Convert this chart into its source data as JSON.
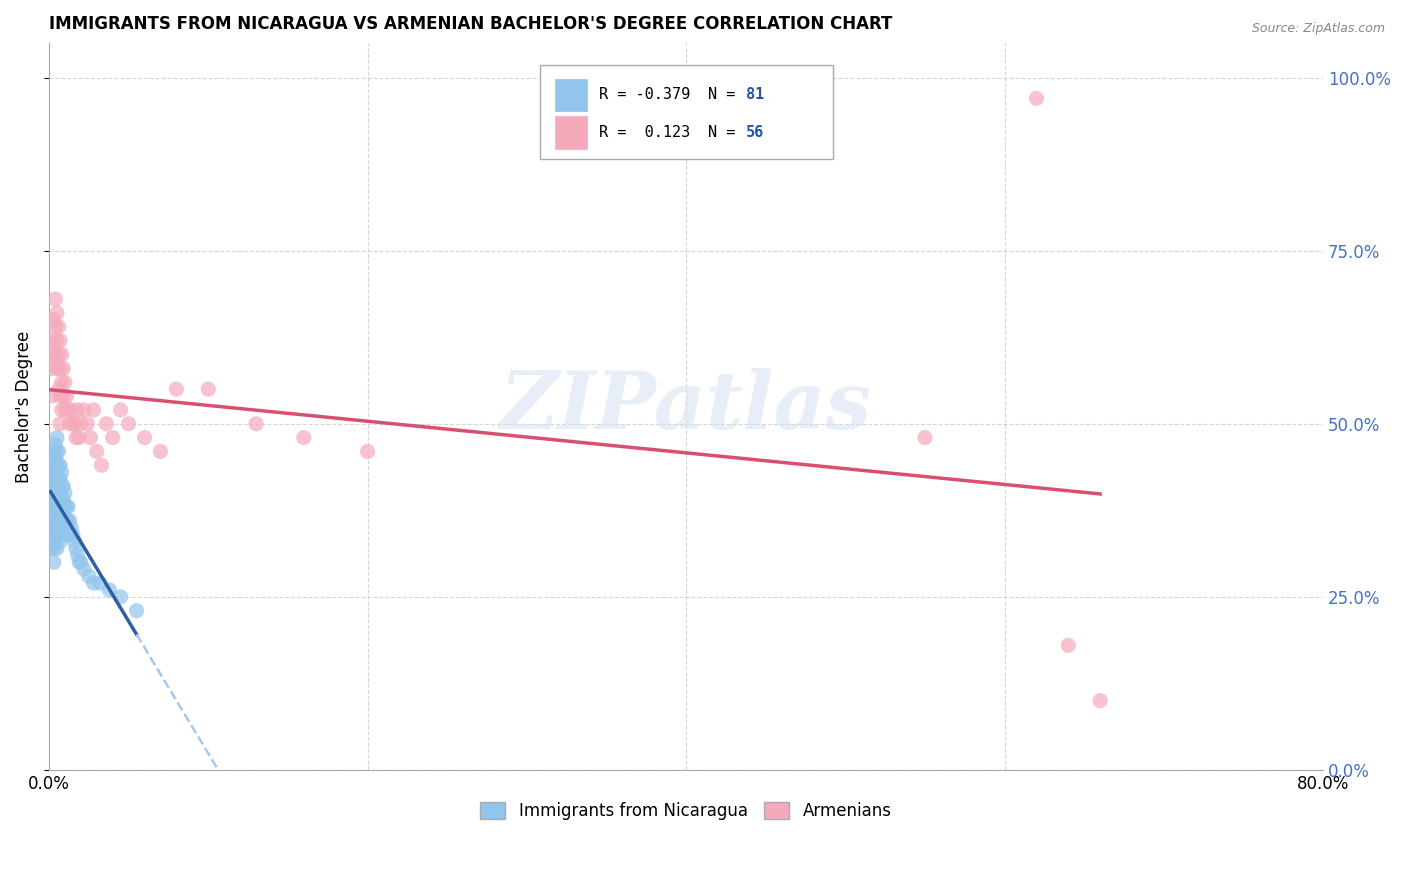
{
  "title": "IMMIGRANTS FROM NICARAGUA VS ARMENIAN BACHELOR'S DEGREE CORRELATION CHART",
  "source": "Source: ZipAtlas.com",
  "ylabel": "Bachelor's Degree",
  "legend_r_blue": "-0.379",
  "legend_n_blue": "81",
  "legend_r_pink": "0.123",
  "legend_n_pink": "56",
  "legend_label_blue": "Immigrants from Nicaragua",
  "legend_label_pink": "Armenians",
  "blue_color": "#92C5EC",
  "pink_color": "#F4AABB",
  "trendline_blue_color": "#2E5FA3",
  "trendline_pink_color": "#D94F70",
  "trendline_dashed_color": "#A8C8E8",
  "watermark": "ZIPatlas",
  "blue_x": [
    0.001,
    0.001,
    0.001,
    0.002,
    0.002,
    0.002,
    0.002,
    0.002,
    0.002,
    0.003,
    0.003,
    0.003,
    0.003,
    0.003,
    0.003,
    0.003,
    0.003,
    0.003,
    0.004,
    0.004,
    0.004,
    0.004,
    0.004,
    0.004,
    0.004,
    0.004,
    0.005,
    0.005,
    0.005,
    0.005,
    0.005,
    0.005,
    0.005,
    0.005,
    0.006,
    0.006,
    0.006,
    0.006,
    0.006,
    0.006,
    0.006,
    0.007,
    0.007,
    0.007,
    0.007,
    0.007,
    0.007,
    0.008,
    0.008,
    0.008,
    0.008,
    0.008,
    0.009,
    0.009,
    0.009,
    0.009,
    0.01,
    0.01,
    0.01,
    0.01,
    0.011,
    0.011,
    0.012,
    0.012,
    0.012,
    0.013,
    0.013,
    0.014,
    0.015,
    0.016,
    0.017,
    0.018,
    0.019,
    0.02,
    0.022,
    0.025,
    0.028,
    0.032,
    0.038,
    0.045,
    0.055
  ],
  "blue_y": [
    0.38,
    0.35,
    0.32,
    0.44,
    0.42,
    0.4,
    0.38,
    0.36,
    0.33,
    0.46,
    0.44,
    0.42,
    0.4,
    0.38,
    0.36,
    0.34,
    0.32,
    0.3,
    0.47,
    0.45,
    0.43,
    0.41,
    0.39,
    0.37,
    0.35,
    0.33,
    0.48,
    0.46,
    0.44,
    0.42,
    0.4,
    0.38,
    0.35,
    0.32,
    0.46,
    0.44,
    0.42,
    0.4,
    0.38,
    0.36,
    0.34,
    0.44,
    0.42,
    0.4,
    0.38,
    0.36,
    0.33,
    0.43,
    0.41,
    0.39,
    0.37,
    0.35,
    0.41,
    0.39,
    0.37,
    0.35,
    0.4,
    0.38,
    0.36,
    0.34,
    0.38,
    0.36,
    0.38,
    0.36,
    0.34,
    0.36,
    0.34,
    0.35,
    0.34,
    0.33,
    0.32,
    0.31,
    0.3,
    0.3,
    0.29,
    0.28,
    0.27,
    0.27,
    0.26,
    0.25,
    0.23
  ],
  "pink_x": [
    0.001,
    0.002,
    0.002,
    0.003,
    0.003,
    0.004,
    0.004,
    0.004,
    0.005,
    0.005,
    0.005,
    0.006,
    0.006,
    0.006,
    0.007,
    0.007,
    0.007,
    0.007,
    0.008,
    0.008,
    0.008,
    0.009,
    0.009,
    0.01,
    0.01,
    0.011,
    0.012,
    0.013,
    0.014,
    0.015,
    0.016,
    0.017,
    0.018,
    0.019,
    0.02,
    0.022,
    0.024,
    0.026,
    0.028,
    0.03,
    0.033,
    0.036,
    0.04,
    0.045,
    0.05,
    0.06,
    0.07,
    0.08,
    0.1,
    0.13,
    0.16,
    0.2,
    0.55,
    0.62,
    0.64,
    0.66
  ],
  "pink_y": [
    0.62,
    0.58,
    0.54,
    0.65,
    0.6,
    0.68,
    0.64,
    0.6,
    0.66,
    0.62,
    0.58,
    0.64,
    0.6,
    0.55,
    0.62,
    0.58,
    0.54,
    0.5,
    0.6,
    0.56,
    0.52,
    0.58,
    0.54,
    0.56,
    0.52,
    0.54,
    0.52,
    0.5,
    0.52,
    0.5,
    0.5,
    0.48,
    0.52,
    0.48,
    0.5,
    0.52,
    0.5,
    0.48,
    0.52,
    0.46,
    0.44,
    0.5,
    0.48,
    0.52,
    0.5,
    0.48,
    0.46,
    0.55,
    0.55,
    0.5,
    0.48,
    0.46,
    0.48,
    0.97,
    0.18,
    0.1
  ],
  "blue_trend_x": [
    0.001,
    0.055
  ],
  "blue_trend_solid_end": 0.055,
  "blue_trend_dashed_end": 0.5,
  "pink_trend_x": [
    0.001,
    0.66
  ],
  "xmin": 0.0,
  "xmax": 0.8,
  "ymin": 0.0,
  "ymax": 1.05,
  "ytick_vals": [
    0.0,
    0.25,
    0.5,
    0.75,
    1.0
  ]
}
